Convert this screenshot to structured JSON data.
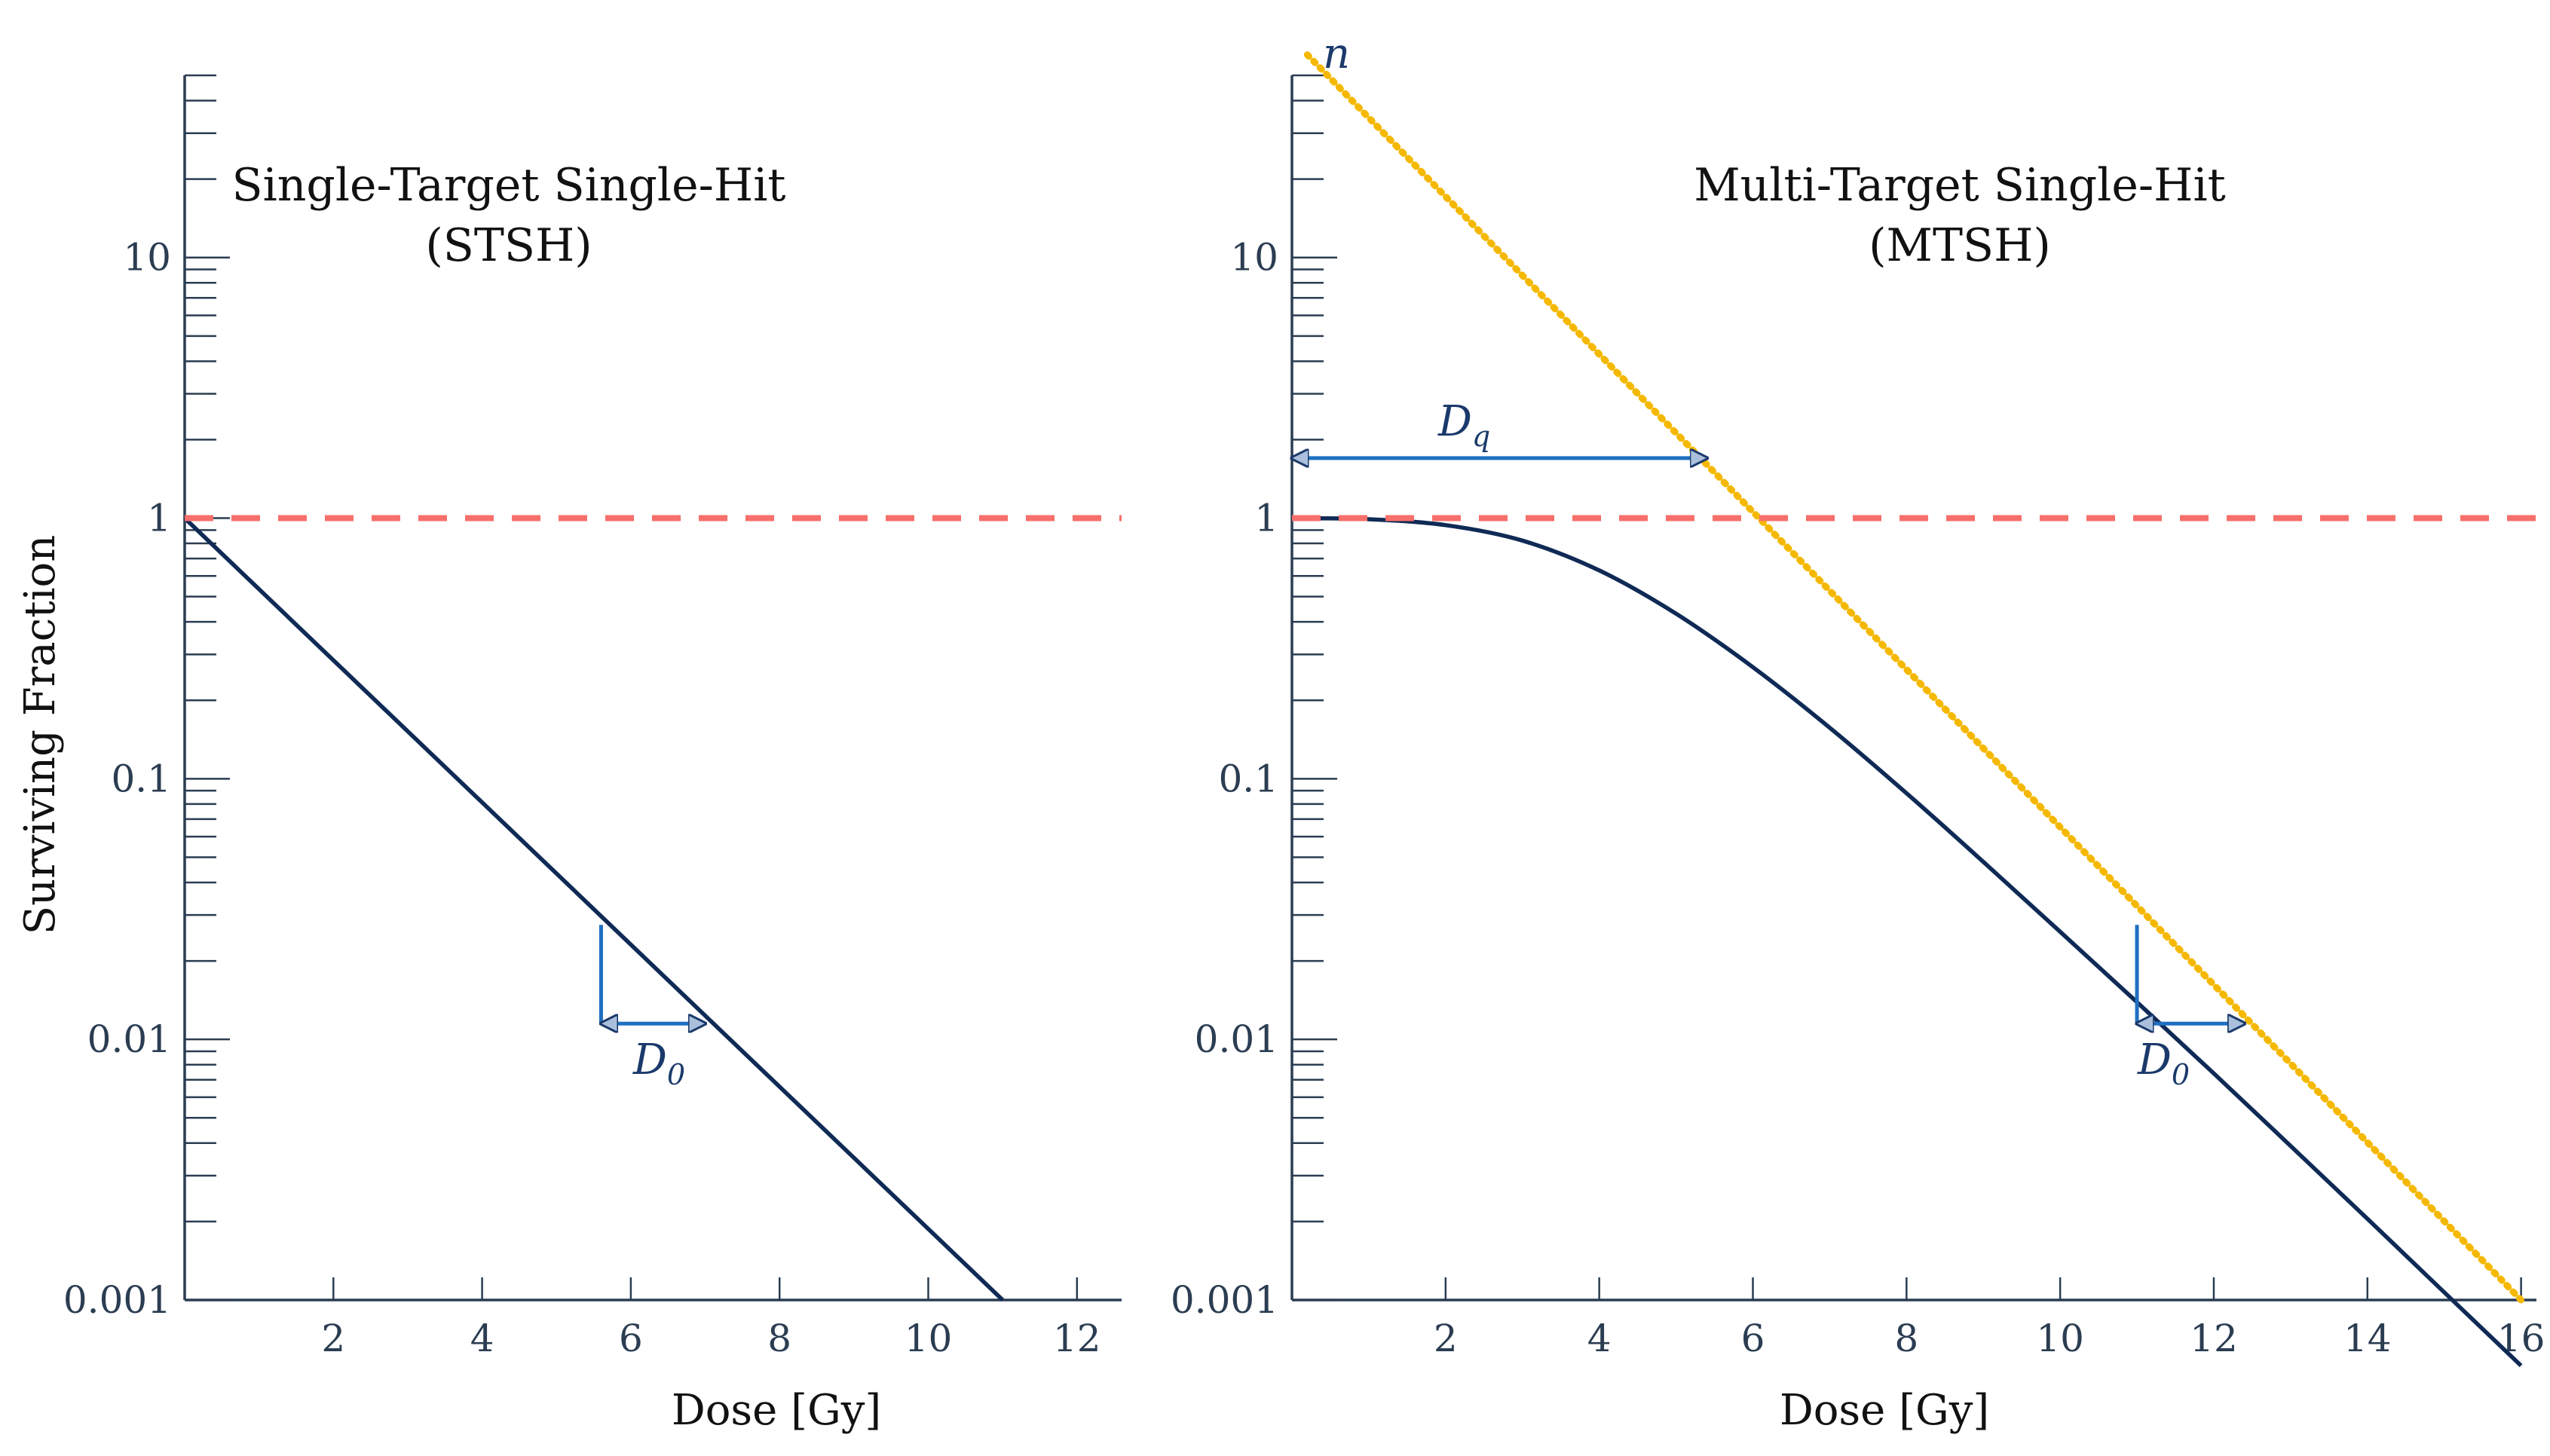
{
  "colors": {
    "axis": "#2b3d52",
    "curve": "#0f2a55",
    "reference_line": "#f76f6b",
    "asymptote": "#f5b800",
    "marker": "#1f6fc1"
  },
  "chart_data": [
    {
      "type": "line",
      "title": "Single-Target Single-Hit",
      "subtitle": "(STSH)",
      "xlabel": "Dose [Gy]",
      "ylabel": "Surviving Fraction",
      "y_scale": "log",
      "xlim": [
        0,
        12.6
      ],
      "ylim": [
        0.001,
        50
      ],
      "x_ticks": [
        2,
        4,
        6,
        8,
        10,
        12
      ],
      "x_tick_labels": [
        "2",
        "4",
        "6",
        "8",
        "10",
        "12"
      ],
      "y_ticks": [
        0.001,
        0.01,
        0.1,
        1,
        10
      ],
      "y_tick_labels": [
        "0.001",
        "0.01",
        "0.1",
        "1",
        "10"
      ],
      "series": [
        {
          "role": "survival-curve",
          "style": "solid",
          "x": [
            0,
            11
          ],
          "y": [
            1,
            0.001
          ]
        },
        {
          "role": "reference-line",
          "style": "dashed",
          "x": [
            0,
            12.6
          ],
          "y": [
            1,
            1
          ]
        }
      ],
      "d0_marker": {
        "label": "D",
        "subscript": "0",
        "x_start": 5.6,
        "x_end": 7.0,
        "y_top": 0.0275,
        "y_bottom": 0.0115
      }
    },
    {
      "type": "line",
      "title": "Multi-Target Single-Hit",
      "subtitle": "(MTSH)",
      "xlabel": "Dose [Gy]",
      "y_scale": "log",
      "xlim": [
        0,
        16.2
      ],
      "ylim": [
        0.001,
        50
      ],
      "x_ticks": [
        2,
        4,
        6,
        8,
        10,
        12,
        14,
        16
      ],
      "x_tick_labels": [
        "2",
        "4",
        "6",
        "8",
        "10",
        "12",
        "14",
        "16"
      ],
      "y_ticks": [
        0.001,
        0.01,
        0.1,
        1,
        10
      ],
      "y_tick_labels": [
        "0.001",
        "0.01",
        "0.1",
        "1",
        "10"
      ],
      "series": [
        {
          "role": "survival-curve",
          "style": "solid",
          "x": [
            0,
            1,
            2,
            3,
            4,
            5,
            6,
            7,
            8,
            9,
            10,
            11,
            12,
            13,
            14,
            15,
            16
          ],
          "y": [
            1.0,
            0.99,
            0.94,
            0.82,
            0.63,
            0.43,
            0.268,
            0.157,
            0.088,
            0.048,
            0.0259,
            0.0139,
            0.0074,
            0.0039,
            0.00205,
            0.00107,
            0.00056
          ]
        },
        {
          "role": "extrapolation",
          "style": "dotted",
          "x": [
            0.2,
            16
          ],
          "y": [
            60,
            0.001
          ]
        },
        {
          "role": "reference-line",
          "style": "dashed",
          "x": [
            0,
            16.2
          ],
          "y": [
            1,
            1
          ]
        }
      ],
      "extrapolation_label": "n",
      "dq_marker": {
        "label": "D",
        "subscript": "q",
        "x_start": 0,
        "x_end": 5.4,
        "y": 1.7
      },
      "d0_marker": {
        "label": "D",
        "subscript": "0",
        "x_start": 11.0,
        "x_end": 12.4,
        "y_top": 0.0275,
        "y_bottom": 0.0115
      }
    }
  ]
}
